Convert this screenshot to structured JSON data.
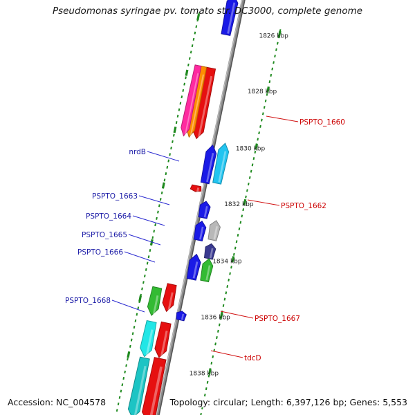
{
  "title": "Pseudomonas syringae pv. tomato str. DC3000, complete genome",
  "footer": {
    "accession": "Accession: NC_004578",
    "summary": "Topology: circular; Length: 6,397,126 bp; Genes: 5,553"
  },
  "colors": {
    "backbone": "#8c8c8c",
    "ticks": "#1f8a1f",
    "label_forward": "#1a1aa6",
    "label_reverse": "#cc0000",
    "callout_forward": "#2a2ad0",
    "callout_reverse": "#d01010"
  },
  "ticks": [
    {
      "label": "1826 kbp"
    },
    {
      "label": "1828 kbp"
    },
    {
      "label": "1830 kbp"
    },
    {
      "label": "1832 kbp"
    },
    {
      "label": "1834 kbp"
    },
    {
      "label": "1836 kbp"
    },
    {
      "label": "1838 kbp"
    }
  ],
  "genes": [
    {
      "strand": "forward",
      "color": "#1a1ae6"
    },
    {
      "strand": "reverse",
      "color": "#e61010"
    },
    {
      "strand": "reverse",
      "color": "#ff8c00"
    },
    {
      "strand": "reverse",
      "color": "#ff2aa0"
    },
    {
      "strand": "forward",
      "color": "#22c4f0"
    },
    {
      "strand": "forward",
      "color": "#1a1ae6"
    },
    {
      "strand": "reverse",
      "color": "#e61010"
    },
    {
      "strand": "forward",
      "color": "#1a1ae6"
    },
    {
      "strand": "forward",
      "color": "#b8b8b8"
    },
    {
      "strand": "forward",
      "color": "#1a1ae6"
    },
    {
      "strand": "forward",
      "color": "#3a3a90"
    },
    {
      "strand": "forward",
      "color": "#1a1ae6"
    },
    {
      "strand": "forward",
      "color": "#33bb33"
    },
    {
      "strand": "forward",
      "color": "#1a1ae6"
    },
    {
      "strand": "forward",
      "color": "#1a1ae6"
    },
    {
      "strand": "reverse",
      "color": "#e61010"
    },
    {
      "strand": "reverse",
      "color": "#33bb33"
    },
    {
      "strand": "reverse",
      "color": "#e61010"
    },
    {
      "strand": "reverse",
      "color": "#22e6e6"
    },
    {
      "strand": "reverse",
      "color": "#e61010"
    },
    {
      "strand": "reverse",
      "color": "#1cc4c4"
    }
  ],
  "labels": [
    {
      "text": "nrdB",
      "strand": "forward"
    },
    {
      "text": "PSPTO_1663",
      "strand": "forward"
    },
    {
      "text": "PSPTO_1664",
      "strand": "forward"
    },
    {
      "text": "PSPTO_1665",
      "strand": "forward"
    },
    {
      "text": "PSPTO_1666",
      "strand": "forward"
    },
    {
      "text": "PSPTO_1668",
      "strand": "forward"
    },
    {
      "text": "PSPTO_1660",
      "strand": "reverse"
    },
    {
      "text": "PSPTO_1662",
      "strand": "reverse"
    },
    {
      "text": "PSPTO_1667",
      "strand": "reverse"
    },
    {
      "text": "tdcD",
      "strand": "reverse"
    }
  ]
}
